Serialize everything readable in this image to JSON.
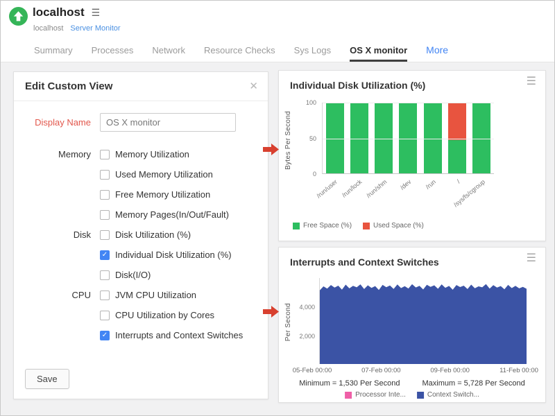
{
  "colors": {
    "accent_blue": "#4285f4",
    "label_red": "#e2574c",
    "arrow_red": "#d8402f",
    "monitor_green": "#35b558",
    "bar_green": "#2dbe60",
    "bar_red": "#e8543f",
    "area_blue": "#3b53a5",
    "legend_pink": "#ef5fa7"
  },
  "header": {
    "title": "localhost",
    "breadcrumb": [
      "localhost",
      "Server Monitor"
    ],
    "tabs": [
      {
        "label": "Summary",
        "active": false,
        "more": false
      },
      {
        "label": "Processes",
        "active": false,
        "more": false
      },
      {
        "label": "Network",
        "active": false,
        "more": false
      },
      {
        "label": "Resource Checks",
        "active": false,
        "more": false
      },
      {
        "label": "Sys Logs",
        "active": false,
        "more": false
      },
      {
        "label": "OS X monitor",
        "active": true,
        "more": false
      },
      {
        "label": "More",
        "active": false,
        "more": true
      }
    ]
  },
  "edit_panel": {
    "title": "Edit Custom View",
    "display_name_label": "Display Name",
    "display_name_value": "OS X monitor",
    "groups": [
      {
        "label": "Memory",
        "options": [
          {
            "label": "Memory Utilization",
            "checked": false
          },
          {
            "label": "Used Memory Utilization",
            "checked": false
          },
          {
            "label": "Free Memory Utilization",
            "checked": false
          },
          {
            "label": "Memory Pages(In/Out/Fault)",
            "checked": false
          }
        ]
      },
      {
        "label": "Disk",
        "options": [
          {
            "label": "Disk Utilization (%)",
            "checked": false
          },
          {
            "label": "Individual Disk Utilization (%)",
            "checked": true
          },
          {
            "label": "Disk(I/O)",
            "checked": false
          }
        ]
      },
      {
        "label": "CPU",
        "options": [
          {
            "label": "JVM CPU Utilization",
            "checked": false
          },
          {
            "label": "CPU Utilization by Cores",
            "checked": false
          },
          {
            "label": "Interrupts and Context Switches",
            "checked": true
          }
        ]
      }
    ],
    "save_label": "Save"
  },
  "chart_data": [
    {
      "type": "bar",
      "title": "Individual Disk Utilization (%)",
      "ylabel": "Bytes Per Second",
      "ylim": [
        0,
        100
      ],
      "yticks": [
        0,
        50,
        100
      ],
      "categories": [
        "/run/user",
        "/run/lock",
        "/run/shm",
        "/dev",
        "/run",
        "/",
        "/sys/fs/cgroup"
      ],
      "stacked": true,
      "legend_position": "bottom",
      "series": [
        {
          "name": "Free Space (%)",
          "color": "#2dbe60",
          "values": [
            100,
            100,
            100,
            100,
            100,
            47,
            100
          ]
        },
        {
          "name": "Used Space (%)",
          "color": "#e8543f",
          "values": [
            0,
            0,
            0,
            0,
            0,
            53,
            0
          ]
        }
      ]
    },
    {
      "type": "area",
      "title": "Interrupts and Context Switches",
      "ylabel": "Per Second",
      "ylim": [
        0,
        6000
      ],
      "yticks": [
        {
          "value": 2000,
          "label": "2,000"
        },
        {
          "value": 4000,
          "label": "4,000"
        }
      ],
      "x_labels": [
        "05-Feb 00:00",
        "07-Feb 00:00",
        "09-Feb 00:00",
        "11-Feb 00:00"
      ],
      "legend_position": "bottom",
      "stats": {
        "minimum": "Minimum = 1,530 Per Second",
        "maximum": "Maximum = 5,728 Per Second"
      },
      "series": [
        {
          "name": "Processor Inte...",
          "color": "#ef5fa7",
          "values": []
        },
        {
          "name": "Context Switch...",
          "color": "#3b53a5",
          "values": [
            5150,
            5420,
            5260,
            5510,
            5330,
            5470,
            5190,
            5540,
            5280,
            5460,
            5350,
            5560,
            5230,
            5490,
            5310,
            5440,
            5170,
            5520,
            5360,
            5480,
            5240,
            5550,
            5300,
            5430,
            5270,
            5570,
            5340,
            5460,
            5200,
            5530,
            5380,
            5490,
            5250,
            5560,
            5320,
            5450,
            5180,
            5510,
            5370,
            5470,
            5230,
            5540,
            5290,
            5420,
            5350,
            5580,
            5260,
            5500,
            5330,
            5440,
            5210,
            5520,
            5300,
            5460,
            5280,
            5380,
            5250
          ]
        }
      ]
    }
  ]
}
